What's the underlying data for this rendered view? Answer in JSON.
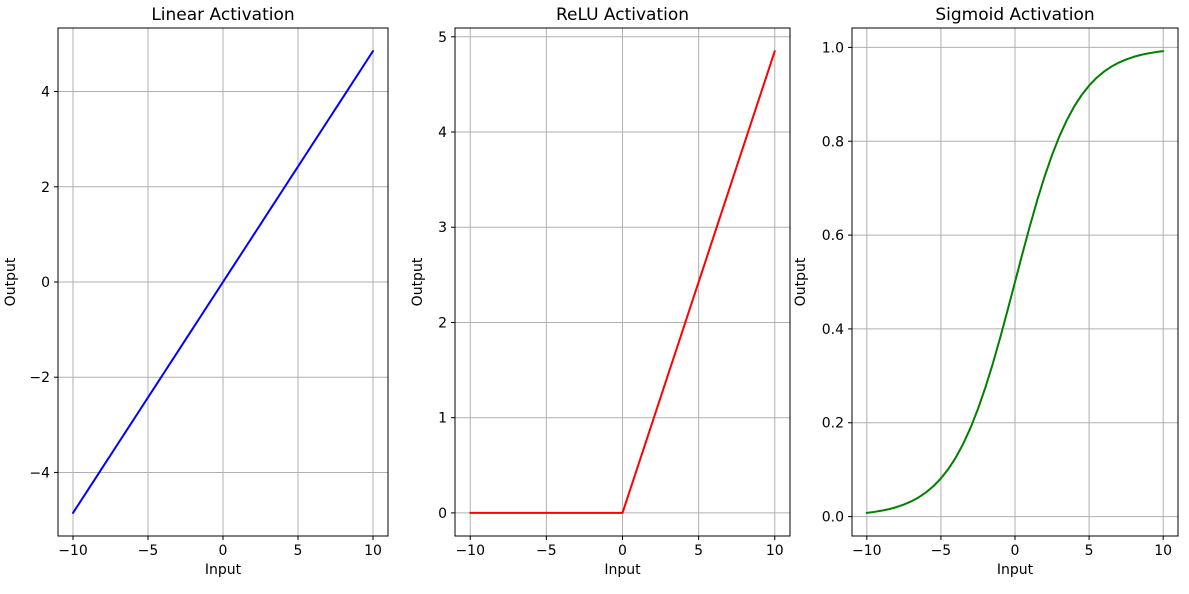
{
  "figure": {
    "background": "#ffffff",
    "grid_color": "#b0b0b0",
    "spine_color": "#000000",
    "text_color": "#000000"
  },
  "chart_data": [
    {
      "type": "line",
      "title": "Linear Activation",
      "xlabel": "Input",
      "ylabel": "Output",
      "line_color": "#0000ff",
      "line_width": 2,
      "grid": true,
      "legend": "none",
      "xlim": [
        -11,
        11
      ],
      "ylim": [
        -5.335,
        5.335
      ],
      "xticks": {
        "values": [
          -10,
          -5,
          0,
          5,
          10
        ],
        "labels": [
          "−10",
          "−5",
          "0",
          "5",
          "10"
        ]
      },
      "yticks": {
        "values": [
          -4,
          -2,
          0,
          2,
          4
        ],
        "labels": [
          "−4",
          "−2",
          "0",
          "2",
          "4"
        ]
      },
      "x": [
        -10,
        -9.5,
        -9,
        -8.5,
        -8,
        -7.5,
        -7,
        -6.5,
        -6,
        -5.5,
        -5,
        -4.5,
        -4,
        -3.5,
        -3,
        -2.5,
        -2,
        -1.5,
        -1,
        -0.5,
        0,
        0.5,
        1,
        1.5,
        2,
        2.5,
        3,
        3.5,
        4,
        4.5,
        5,
        5.5,
        6,
        6.5,
        7,
        7.5,
        8,
        8.5,
        9,
        9.5,
        10
      ],
      "y": [
        -4.85,
        -4.6075,
        -4.365,
        -4.1225,
        -3.88,
        -3.6375,
        -3.395,
        -3.1525,
        -2.91,
        -2.6675,
        -2.425,
        -2.1825,
        -1.94,
        -1.6975,
        -1.455,
        -1.2125,
        -0.97,
        -0.7275,
        -0.485,
        -0.2425,
        0,
        0.2425,
        0.485,
        0.7275,
        0.97,
        1.2125,
        1.455,
        1.6975,
        1.94,
        2.1825,
        2.425,
        2.6675,
        2.91,
        3.1525,
        3.395,
        3.6375,
        3.88,
        4.1225,
        4.365,
        4.6075,
        4.85
      ]
    },
    {
      "type": "line",
      "title": "ReLU Activation",
      "xlabel": "Input",
      "ylabel": "Output",
      "line_color": "#ff0000",
      "line_width": 2,
      "grid": true,
      "legend": "none",
      "xlim": [
        -11,
        11
      ],
      "ylim": [
        -0.2425,
        5.0925
      ],
      "xticks": {
        "values": [
          -10,
          -5,
          0,
          5,
          10
        ],
        "labels": [
          "−10",
          "−5",
          "0",
          "5",
          "10"
        ]
      },
      "yticks": {
        "values": [
          0,
          1,
          2,
          3,
          4,
          5
        ],
        "labels": [
          "0",
          "1",
          "2",
          "3",
          "4",
          "5"
        ]
      },
      "x": [
        -10,
        -9.5,
        -9,
        -8.5,
        -8,
        -7.5,
        -7,
        -6.5,
        -6,
        -5.5,
        -5,
        -4.5,
        -4,
        -3.5,
        -3,
        -2.5,
        -2,
        -1.5,
        -1,
        -0.5,
        0,
        0.5,
        1,
        1.5,
        2,
        2.5,
        3,
        3.5,
        4,
        4.5,
        5,
        5.5,
        6,
        6.5,
        7,
        7.5,
        8,
        8.5,
        9,
        9.5,
        10
      ],
      "y": [
        0,
        0,
        0,
        0,
        0,
        0,
        0,
        0,
        0,
        0,
        0,
        0,
        0,
        0,
        0,
        0,
        0,
        0,
        0,
        0,
        0,
        0.2425,
        0.485,
        0.7275,
        0.97,
        1.2125,
        1.455,
        1.6975,
        1.94,
        2.1825,
        2.425,
        2.6675,
        2.91,
        3.1525,
        3.395,
        3.6375,
        3.88,
        4.1225,
        4.365,
        4.6075,
        4.85
      ]
    },
    {
      "type": "line",
      "title": "Sigmoid Activation",
      "xlabel": "Input",
      "ylabel": "Output",
      "line_color": "#008000",
      "line_width": 2,
      "grid": true,
      "legend": "none",
      "xlim": [
        -11,
        11
      ],
      "ylim": [
        -0.0414,
        1.0414
      ],
      "xticks": {
        "values": [
          -10,
          -5,
          0,
          5,
          10
        ],
        "labels": [
          "−10",
          "−5",
          "0",
          "5",
          "10"
        ]
      },
      "yticks": {
        "values": [
          0,
          0.2,
          0.4,
          0.6,
          0.8,
          1.0
        ],
        "labels": [
          "0.0",
          "0.2",
          "0.4",
          "0.6",
          "0.8",
          "1.0"
        ]
      },
      "x": [
        -10,
        -9.5,
        -9,
        -8.5,
        -8,
        -7.5,
        -7,
        -6.5,
        -6,
        -5.5,
        -5,
        -4.5,
        -4,
        -3.5,
        -3,
        -2.5,
        -2,
        -1.5,
        -1,
        -0.5,
        0,
        0.5,
        1,
        1.5,
        2,
        2.5,
        3,
        3.5,
        4,
        4.5,
        5,
        5.5,
        6,
        6.5,
        7,
        7.5,
        8,
        8.5,
        9,
        9.5,
        10
      ],
      "y": [
        0.0078,
        0.0099,
        0.0126,
        0.0159,
        0.0202,
        0.0256,
        0.0325,
        0.041,
        0.0517,
        0.0649,
        0.0813,
        0.1013,
        0.1256,
        0.1548,
        0.1892,
        0.2293,
        0.2749,
        0.3257,
        0.3811,
        0.4397,
        0.5,
        0.5603,
        0.6189,
        0.6743,
        0.7251,
        0.7707,
        0.8108,
        0.8452,
        0.8744,
        0.8987,
        0.9187,
        0.9351,
        0.9483,
        0.959,
        0.9675,
        0.9744,
        0.9798,
        0.9841,
        0.9874,
        0.9901,
        0.9922
      ]
    }
  ]
}
